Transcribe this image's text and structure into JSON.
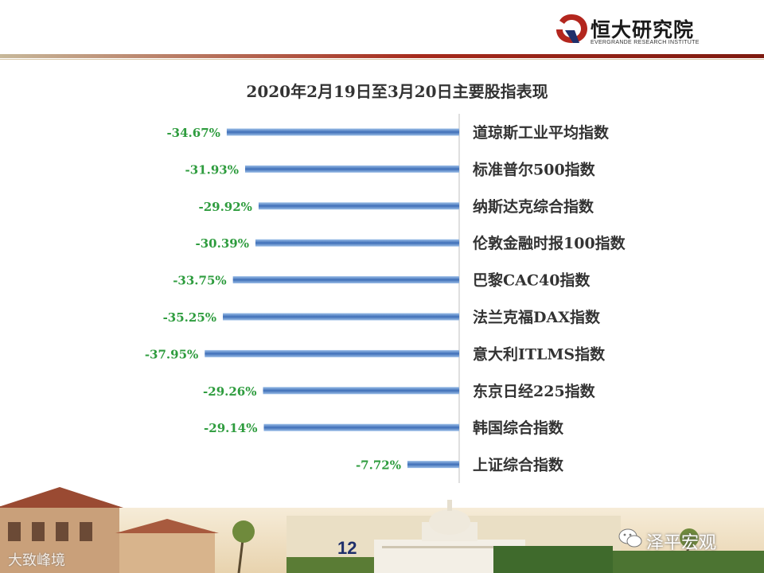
{
  "header": {
    "logo_text": "恒大研究院",
    "logo_subtext": "EVERGRANDE RESEARCH INSTITUTE"
  },
  "colors": {
    "bar": "#4a7cc4",
    "value_label": "#2e9c3e",
    "brand_red": "#b3261e",
    "axis": "#bfbfbf"
  },
  "chart_data": {
    "type": "bar",
    "orientation": "horizontal",
    "title": "2020年2月19日至3月20日主要股指表现",
    "xlabel": "",
    "ylabel": "",
    "categories": [
      "道琼斯工业平均指数",
      "标准普尔500指数",
      "纳斯达克综合指数",
      "伦敦金融时报100指数",
      "巴黎CAC40指数",
      "法兰克福DAX指数",
      "意大利ITLMS指数",
      "东京日经225指数",
      "韩国综合指数",
      "上证综合指数"
    ],
    "values": [
      -34.67,
      -31.93,
      -29.92,
      -30.39,
      -33.75,
      -35.25,
      -37.95,
      -29.26,
      -29.14,
      -7.72
    ],
    "value_labels": [
      "-34.67%",
      "-31.93%",
      "-29.92%",
      "-30.39%",
      "-33.75%",
      "-35.25%",
      "-37.95%",
      "-29.26%",
      "-29.14%",
      "-7.72%"
    ],
    "xlim": [
      -40,
      0
    ],
    "grid": false,
    "legend": "none"
  },
  "footer": {
    "page_number": "12",
    "watermark": "泽平宏观",
    "watermark_left": "大致峰境"
  }
}
